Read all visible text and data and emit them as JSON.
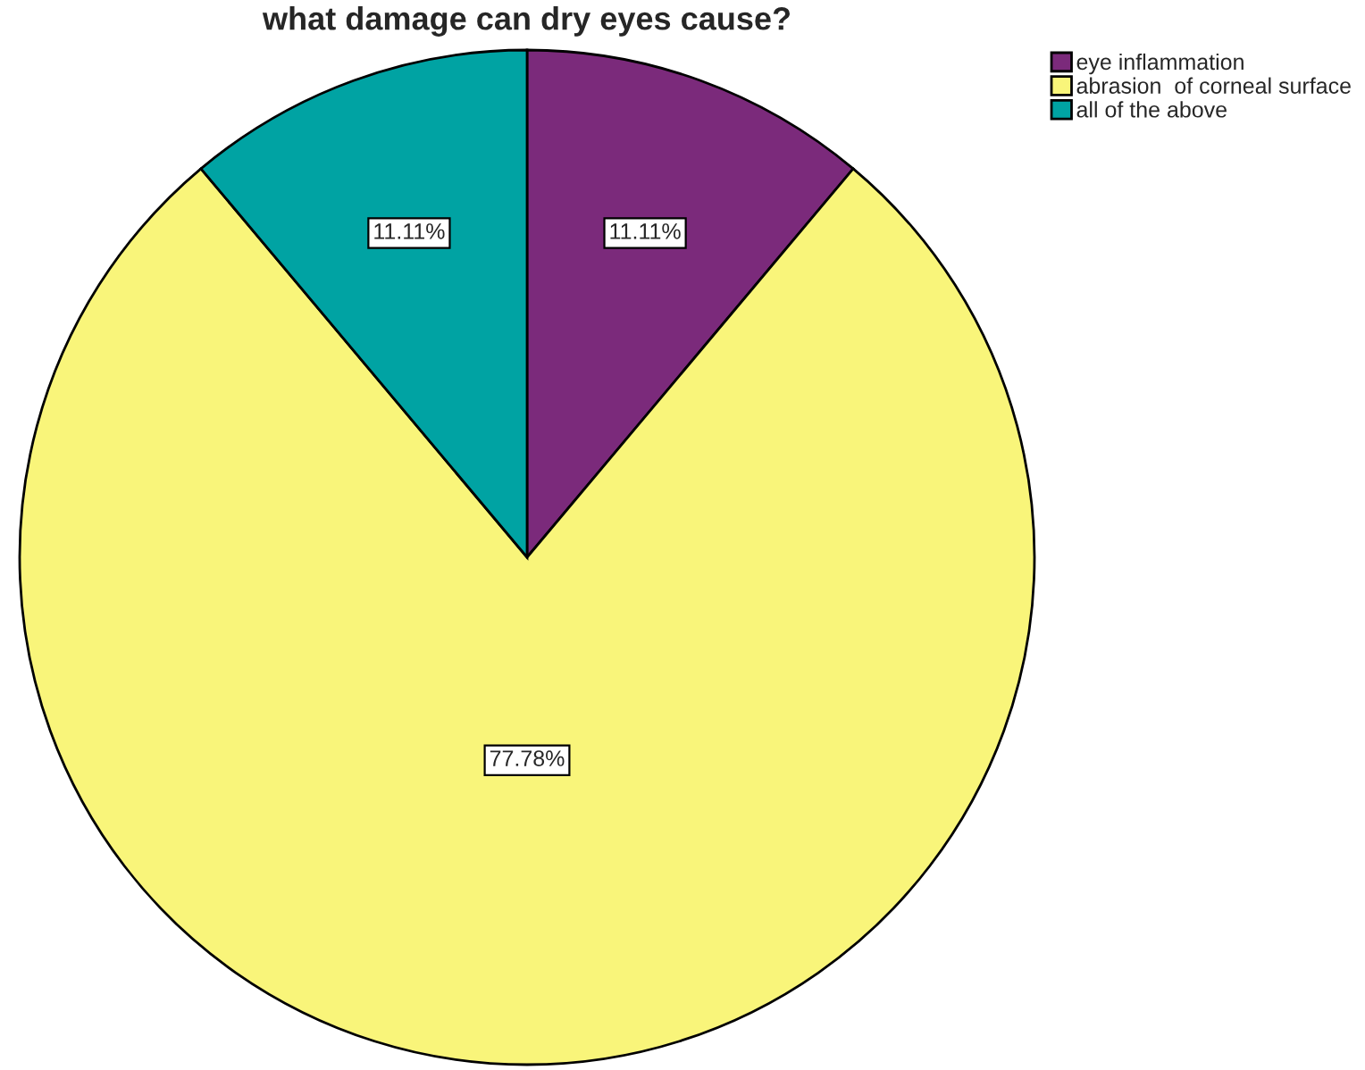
{
  "chart_data": {
    "type": "pie",
    "title": "what damage can dry eyes cause?",
    "categories": [
      "eye inflammation",
      "abrasion  of corneal surface",
      "all of the above"
    ],
    "values": [
      11.11,
      77.78,
      11.11
    ],
    "colors": [
      "#7b2a7b",
      "#f9f57a",
      "#00a3a3"
    ],
    "value_labels": [
      "11.11%",
      "77.78%",
      "11.11%"
    ],
    "legend": "top right"
  }
}
